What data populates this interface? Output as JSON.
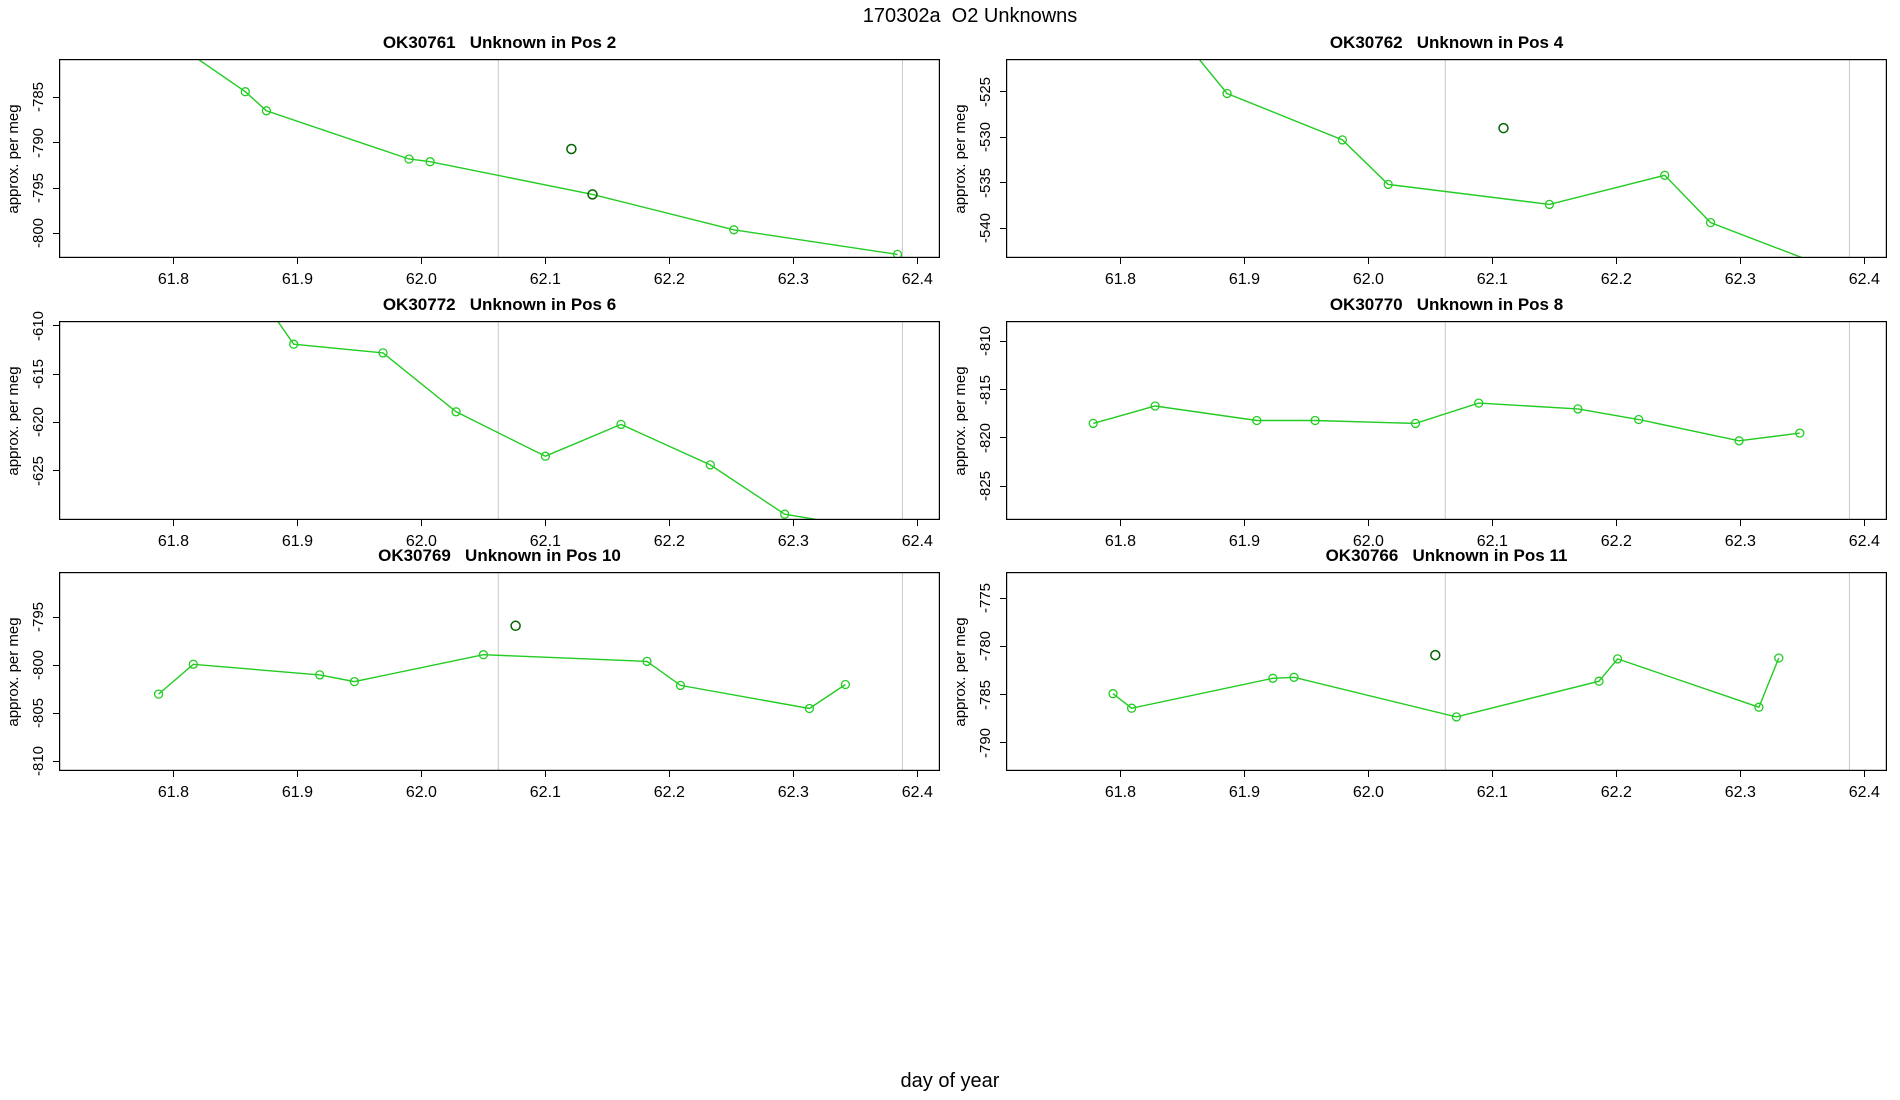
{
  "title": "170302a  O2 Unknowns",
  "xlabel": "day of year",
  "ylabel": "approx. per meg",
  "colors": {
    "line": "#22CC22",
    "dark_marker": "#006400",
    "vline": "#C8C8C8",
    "axis": "#000000"
  },
  "chart_data": [
    {
      "type": "line",
      "title": "OK30761   Unknown in Pos 2",
      "grid": {
        "row": 0,
        "col": 0
      },
      "xlim": [
        61.7077,
        62.4183
      ],
      "ylim": [
        -802.7,
        -780.8
      ],
      "xticks": [
        "61.8",
        "61.9",
        "62.0",
        "62.1",
        "62.2",
        "62.3",
        "62.4"
      ],
      "yticks": [
        "-785",
        "-790",
        "-795",
        "-800"
      ],
      "vlines": [
        62.062,
        62.388
      ],
      "line": [
        [
          61.79,
          -778.0
        ],
        [
          61.858,
          -784.4
        ],
        [
          61.875,
          -786.5
        ],
        [
          61.99,
          -791.8
        ],
        [
          62.007,
          -792.1
        ],
        [
          62.138,
          -795.7
        ],
        [
          62.252,
          -799.6
        ],
        [
          62.384,
          -802.3
        ]
      ],
      "markers": [
        [
          61.858,
          -784.4
        ],
        [
          61.875,
          -786.5
        ],
        [
          61.99,
          -791.8
        ],
        [
          62.007,
          -792.1
        ],
        [
          62.252,
          -799.6
        ],
        [
          62.384,
          -802.3
        ]
      ],
      "dark_markers": [
        [
          62.121,
          -790.7
        ],
        [
          62.138,
          -795.7
        ]
      ]
    },
    {
      "type": "line",
      "title": "OK30762   Unknown in Pos 4",
      "grid": {
        "row": 0,
        "col": 1
      },
      "xlim": [
        61.7077,
        62.4183
      ],
      "ylim": [
        -543.3,
        -521.4
      ],
      "xticks": [
        "61.8",
        "61.9",
        "62.0",
        "62.1",
        "62.2",
        "62.3",
        "62.4"
      ],
      "yticks": [
        "-525",
        "-530",
        "-535",
        "-540"
      ],
      "vlines": [
        62.062,
        62.388
      ],
      "line": [
        [
          61.84,
          -517.5
        ],
        [
          61.886,
          -525.2
        ],
        [
          61.979,
          -530.3
        ],
        [
          62.016,
          -535.2
        ],
        [
          62.146,
          -537.4
        ],
        [
          62.239,
          -534.2
        ],
        [
          62.276,
          -539.4
        ],
        [
          62.36,
          -543.8
        ]
      ],
      "markers": [
        [
          61.886,
          -525.2
        ],
        [
          61.979,
          -530.3
        ],
        [
          62.016,
          -535.2
        ],
        [
          62.146,
          -537.4
        ],
        [
          62.239,
          -534.2
        ],
        [
          62.276,
          -539.4
        ]
      ],
      "dark_markers": [
        [
          62.109,
          -529.0
        ]
      ]
    },
    {
      "type": "line",
      "title": "OK30772   Unknown in Pos 6",
      "grid": {
        "row": 1,
        "col": 0
      },
      "xlim": [
        61.7077,
        62.4183
      ],
      "ylim": [
        -630.1,
        -609.5
      ],
      "xticks": [
        "61.8",
        "61.9",
        "62.0",
        "62.1",
        "62.2",
        "62.3",
        "62.4"
      ],
      "yticks": [
        "-610",
        "-615",
        "-620",
        "-625"
      ],
      "vlines": [
        62.062,
        62.388
      ],
      "line": [
        [
          61.872,
          -607.3
        ],
        [
          61.897,
          -611.9
        ],
        [
          61.969,
          -612.8
        ],
        [
          62.028,
          -618.9
        ],
        [
          62.1,
          -623.5
        ],
        [
          62.161,
          -620.2
        ],
        [
          62.233,
          -624.4
        ],
        [
          62.293,
          -629.5
        ],
        [
          62.335,
          -630.4
        ]
      ],
      "markers": [
        [
          61.897,
          -611.9
        ],
        [
          61.969,
          -612.8
        ],
        [
          62.028,
          -618.9
        ],
        [
          62.1,
          -623.5
        ],
        [
          62.161,
          -620.2
        ],
        [
          62.233,
          -624.4
        ],
        [
          62.293,
          -629.5
        ]
      ],
      "dark_markers": []
    },
    {
      "type": "line",
      "title": "OK30770   Unknown in Pos 8",
      "grid": {
        "row": 1,
        "col": 1
      },
      "xlim": [
        61.7077,
        62.4183
      ],
      "ylim": [
        -828.5,
        -807.9
      ],
      "xticks": [
        "61.8",
        "61.9",
        "62.0",
        "62.1",
        "62.2",
        "62.3",
        "62.4"
      ],
      "yticks": [
        "-810",
        "-815",
        "-820",
        "-825"
      ],
      "vlines": [
        62.062,
        62.388
      ],
      "line": [
        [
          61.778,
          -818.5
        ],
        [
          61.828,
          -816.7
        ],
        [
          61.91,
          -818.2
        ],
        [
          61.957,
          -818.2
        ],
        [
          62.038,
          -818.5
        ],
        [
          62.089,
          -816.4
        ],
        [
          62.169,
          -817.0
        ],
        [
          62.218,
          -818.1
        ],
        [
          62.299,
          -820.3
        ],
        [
          62.348,
          -819.5
        ]
      ],
      "markers": [
        [
          61.778,
          -818.5
        ],
        [
          61.828,
          -816.7
        ],
        [
          61.91,
          -818.2
        ],
        [
          61.957,
          -818.2
        ],
        [
          62.038,
          -818.5
        ],
        [
          62.089,
          -816.4
        ],
        [
          62.169,
          -817.0
        ],
        [
          62.218,
          -818.1
        ],
        [
          62.299,
          -820.3
        ],
        [
          62.348,
          -819.5
        ]
      ],
      "dark_markers": []
    },
    {
      "type": "line",
      "title": "OK30769   Unknown in Pos 10",
      "grid": {
        "row": 2,
        "col": 0
      },
      "xlim": [
        61.7077,
        62.4183
      ],
      "ylim": [
        -811.0,
        -790.3
      ],
      "xticks": [
        "61.8",
        "61.9",
        "62.0",
        "62.1",
        "62.2",
        "62.3",
        "62.4"
      ],
      "yticks": [
        "-795",
        "-800",
        "-805",
        "-810"
      ],
      "vlines": [
        62.062,
        62.388
      ],
      "line": [
        [
          61.788,
          -803.0
        ],
        [
          61.816,
          -799.9
        ],
        [
          61.918,
          -801.0
        ],
        [
          61.946,
          -801.7
        ],
        [
          62.05,
          -798.9
        ],
        [
          62.182,
          -799.6
        ],
        [
          62.209,
          -802.1
        ],
        [
          62.313,
          -804.5
        ],
        [
          62.342,
          -802.0
        ]
      ],
      "markers": [
        [
          61.788,
          -803.0
        ],
        [
          61.816,
          -799.9
        ],
        [
          61.918,
          -801.0
        ],
        [
          61.946,
          -801.7
        ],
        [
          62.05,
          -798.9
        ],
        [
          62.182,
          -799.6
        ],
        [
          62.209,
          -802.1
        ],
        [
          62.313,
          -804.5
        ],
        [
          62.342,
          -802.0
        ]
      ],
      "dark_markers": [
        [
          62.076,
          -795.9
        ]
      ]
    },
    {
      "type": "line",
      "title": "OK30766   Unknown in Pos 11",
      "grid": {
        "row": 2,
        "col": 1
      },
      "xlim": [
        61.7077,
        62.4183
      ],
      "ylim": [
        -792.9,
        -772.3
      ],
      "xticks": [
        "61.8",
        "61.9",
        "62.0",
        "62.1",
        "62.2",
        "62.3",
        "62.4"
      ],
      "yticks": [
        "-775",
        "-780",
        "-785",
        "-790"
      ],
      "vlines": [
        62.062,
        62.388
      ],
      "line": [
        [
          61.794,
          -784.9
        ],
        [
          61.809,
          -786.4
        ],
        [
          61.923,
          -783.3
        ],
        [
          61.94,
          -783.2
        ],
        [
          62.071,
          -787.3
        ],
        [
          62.186,
          -783.6
        ],
        [
          62.201,
          -781.3
        ],
        [
          62.315,
          -786.3
        ],
        [
          62.331,
          -781.2
        ]
      ],
      "markers": [
        [
          61.794,
          -784.9
        ],
        [
          61.809,
          -786.4
        ],
        [
          61.923,
          -783.3
        ],
        [
          61.94,
          -783.2
        ],
        [
          62.071,
          -787.3
        ],
        [
          62.186,
          -783.6
        ],
        [
          62.201,
          -781.3
        ],
        [
          62.315,
          -786.3
        ],
        [
          62.331,
          -781.2
        ]
      ],
      "dark_markers": [
        [
          62.054,
          -780.9
        ]
      ]
    }
  ]
}
